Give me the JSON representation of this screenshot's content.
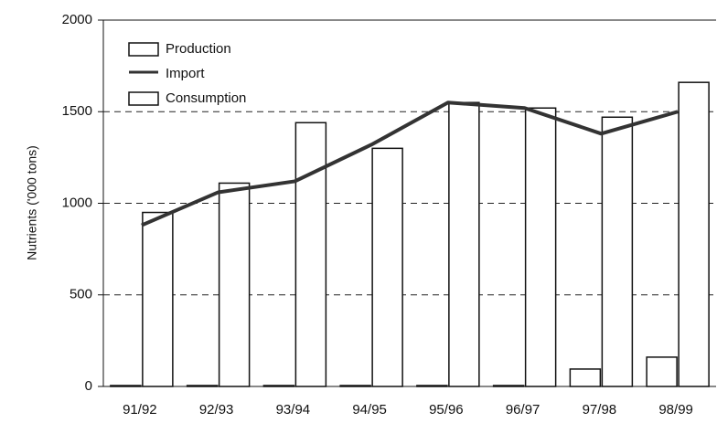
{
  "chart_data": {
    "type": "bar_line",
    "y_label": "Nutrients ('000 tons)",
    "categories": [
      "91/92",
      "92/93",
      "93/94",
      "94/95",
      "95/96",
      "96/97",
      "97/98",
      "98/99"
    ],
    "series": [
      {
        "name": "Production",
        "kind": "bar",
        "color": "#ffffff",
        "values": [
          5,
          5,
          5,
          5,
          5,
          5,
          95,
          160
        ]
      },
      {
        "name": "Import",
        "kind": "line",
        "color": "#333333",
        "values": [
          880,
          1060,
          1120,
          1320,
          1550,
          1520,
          1380,
          1500
        ]
      },
      {
        "name": "Consumption",
        "kind": "bar",
        "color": "#ffffff",
        "values": [
          950,
          1110,
          1440,
          1300,
          1550,
          1520,
          1470,
          1660
        ]
      }
    ],
    "ylim": [
      0,
      2000
    ],
    "yticks": [
      0,
      500,
      1000,
      1500,
      2000
    ],
    "grid": true,
    "legend": "upper-left"
  }
}
